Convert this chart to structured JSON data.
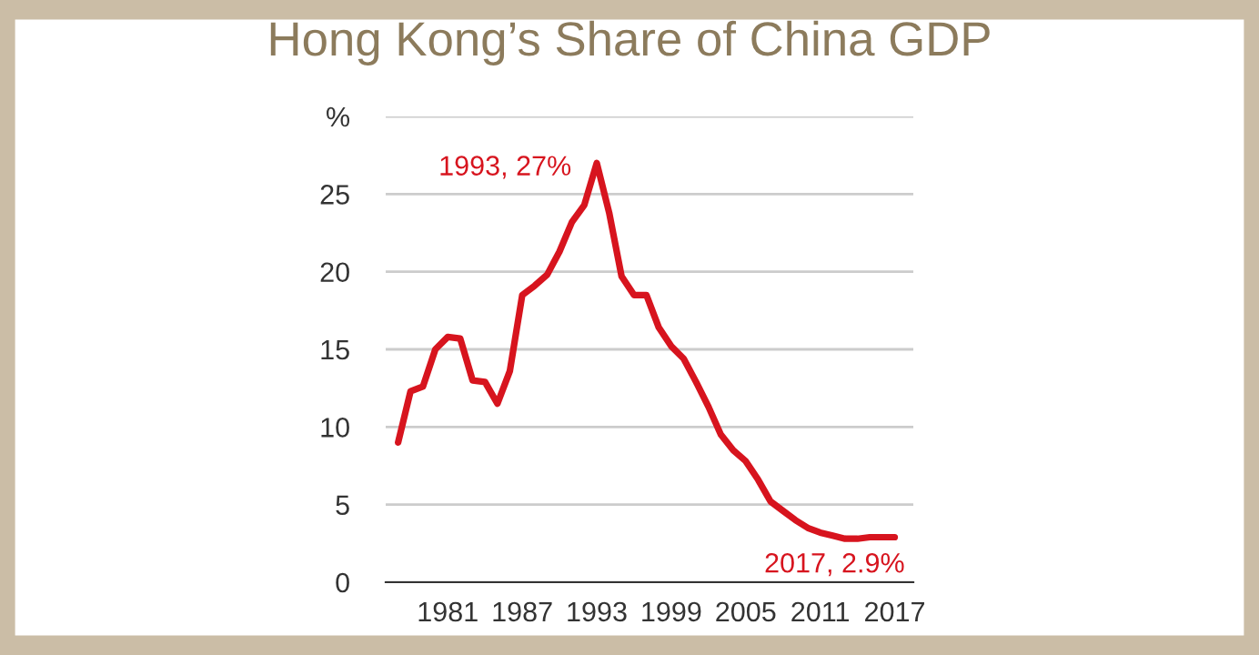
{
  "chart_data": {
    "type": "line",
    "title": "Hong Kong’s Share of China GDP",
    "x": [
      1977,
      1978,
      1979,
      1980,
      1981,
      1982,
      1983,
      1984,
      1985,
      1986,
      1987,
      1988,
      1989,
      1990,
      1991,
      1992,
      1993,
      1994,
      1995,
      1996,
      1997,
      1998,
      1999,
      2000,
      2001,
      2002,
      2003,
      2004,
      2005,
      2006,
      2007,
      2008,
      2009,
      2010,
      2011,
      2012,
      2013,
      2014,
      2015,
      2016,
      2017
    ],
    "series": [
      {
        "color": "#d7141e",
        "values": [
          9.0,
          12.3,
          12.6,
          15.0,
          15.8,
          15.7,
          13.0,
          12.9,
          11.5,
          13.6,
          18.5,
          19.1,
          19.8,
          21.3,
          23.2,
          24.3,
          27.0,
          23.8,
          19.7,
          18.5,
          18.5,
          16.4,
          15.2,
          14.4,
          12.9,
          11.3,
          9.5,
          8.5,
          7.8,
          6.6,
          5.2,
          4.6,
          4.0,
          3.5,
          3.2,
          3.0,
          2.8,
          2.8,
          2.9,
          2.9,
          2.9
        ]
      }
    ],
    "xlim": [
      1976,
      2018.5
    ],
    "xticks": [
      1981,
      1987,
      1993,
      1999,
      2005,
      2011,
      2017
    ],
    "ylim": [
      0,
      30
    ],
    "yticks": [
      0,
      5,
      10,
      15,
      20,
      25,
      {
        "value": 30,
        "label": "%"
      }
    ],
    "grid": "y",
    "marker": "none",
    "line_style": "solid",
    "annotations": [
      {
        "text": "1993, 27%",
        "x": 1993,
        "y": 27
      },
      {
        "text": "2017, 2.9%",
        "x": 2017,
        "y": 2.9
      }
    ]
  }
}
